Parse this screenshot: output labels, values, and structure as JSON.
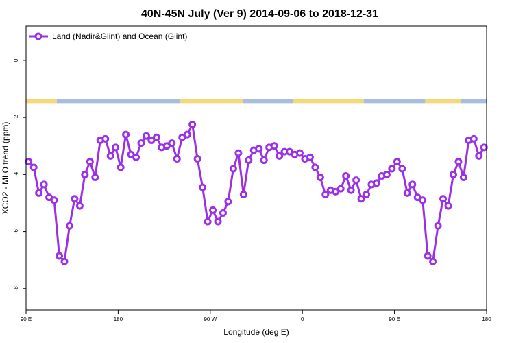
{
  "chart_data": {
    "type": "line",
    "title": "40N-45N July (Ver 9)   2014-09-06 to 2018-12-31",
    "xlabel": "Longitude (deg E)",
    "ylabel": "XCO2 - MLO trend (ppm)",
    "x_ticks": [
      {
        "value": 90,
        "label": "90 E"
      },
      {
        "value": 180,
        "label": "180"
      },
      {
        "value": 270,
        "label": "90 W"
      },
      {
        "value": 360,
        "label": "0"
      },
      {
        "value": 450,
        "label": "90 E"
      },
      {
        "value": 540,
        "label": "180"
      }
    ],
    "y_ticks": [
      {
        "value": 0,
        "label": "0"
      },
      {
        "value": -2,
        "label": "-2"
      },
      {
        "value": -4,
        "label": "-4"
      },
      {
        "value": -6,
        "label": "-6"
      },
      {
        "value": -8,
        "label": "-8"
      }
    ],
    "xlim": [
      90,
      540
    ],
    "ylim": [
      -8.75,
      1.2
    ],
    "grid": false,
    "legend_position": "top-left",
    "series": [
      {
        "name": "Land (Nadir&Glint) and Ocean (Glint)",
        "color": "#9b30e8",
        "marker": "open-circle",
        "x": [
          92.5,
          97.5,
          102.5,
          107.5,
          112.5,
          117.5,
          122.5,
          127.5,
          132.5,
          137.5,
          142.5,
          147.5,
          152.5,
          157.5,
          162.5,
          167.5,
          172.5,
          177.5,
          182.5,
          187.5,
          192.5,
          197.5,
          202.5,
          207.5,
          212.5,
          217.5,
          222.5,
          227.5,
          232.5,
          237.5,
          242.5,
          247.5,
          252.5,
          257.5,
          262.5,
          267.5,
          272.5,
          277.5,
          282.5,
          287.5,
          292.5,
          297.5,
          302.5,
          307.5,
          312.5,
          317.5,
          322.5,
          327.5,
          332.5,
          337.5,
          342.5,
          347.5,
          352.5,
          357.5,
          362.5,
          367.5,
          372.5,
          377.5,
          382.5,
          387.5,
          392.5,
          397.5,
          402.5,
          407.5,
          412.5,
          417.5,
          422.5,
          427.5,
          432.5,
          437.5,
          442.5,
          447.5,
          452.5,
          457.5,
          462.5,
          467.5,
          472.5,
          477.5,
          482.5,
          487.5,
          492.5,
          497.5,
          502.5,
          507.5,
          512.5,
          517.5,
          522.5,
          527.5,
          532.5,
          537.5
        ],
        "y": [
          -3.55,
          -3.75,
          -4.65,
          -4.35,
          -4.8,
          -4.9,
          -6.85,
          -7.05,
          -5.8,
          -4.85,
          -5.1,
          -4.0,
          -3.55,
          -4.1,
          -2.8,
          -2.75,
          -3.35,
          -3.05,
          -3.75,
          -2.6,
          -3.3,
          -3.4,
          -2.9,
          -2.65,
          -2.8,
          -2.7,
          -3.05,
          -3.0,
          -2.9,
          -3.45,
          -2.7,
          -2.6,
          -2.25,
          -3.45,
          -4.45,
          -5.65,
          -5.25,
          -5.65,
          -5.35,
          -4.95,
          -3.8,
          -3.25,
          -4.7,
          -3.5,
          -3.15,
          -3.1,
          -3.5,
          -3.05,
          -3.0,
          -3.35,
          -3.2,
          -3.2,
          -3.3,
          -3.25,
          -3.45,
          -3.4,
          -3.75,
          -4.1,
          -4.7,
          -4.55,
          -4.6,
          -4.5,
          -4.05,
          -4.55,
          -4.2,
          -4.85,
          -4.7,
          -4.35,
          -4.3,
          -4.05,
          -4.0,
          -3.8,
          -3.55,
          -3.8,
          -4.65,
          -4.35,
          -4.8,
          -4.9,
          -6.85,
          -7.05,
          -5.8,
          -4.85,
          -5.1,
          -4.0,
          -3.55,
          -4.1,
          -2.8,
          -2.75,
          -3.35,
          -3.05
        ]
      }
    ],
    "land_ocean_band": {
      "land_color": "#f4d97a",
      "ocean_color": "#a8bedc",
      "y_top": -1.35,
      "y_bottom": -1.5,
      "segments": [
        {
          "type": "land",
          "x0": 90,
          "x1": 120
        },
        {
          "type": "ocean",
          "x0": 120,
          "x1": 240
        },
        {
          "type": "land",
          "x0": 240,
          "x1": 302
        },
        {
          "type": "ocean",
          "x0": 302,
          "x1": 351
        },
        {
          "type": "land",
          "x0": 351,
          "x1": 420
        },
        {
          "type": "ocean",
          "x0": 420,
          "x1": 480
        },
        {
          "type": "land",
          "x0": 480,
          "x1": 515
        },
        {
          "type": "ocean",
          "x0": 515,
          "x1": 540
        }
      ]
    }
  }
}
